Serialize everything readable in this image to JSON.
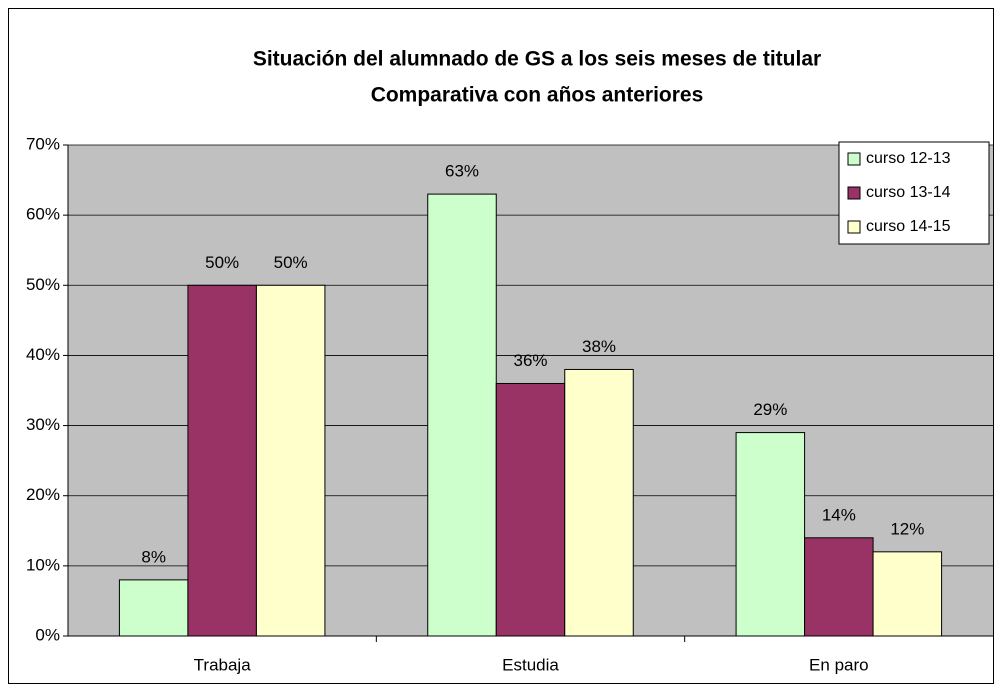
{
  "chart_data": {
    "type": "bar",
    "title": "Situación del alumnado de GS a los seis meses de titular",
    "subtitle": "Comparativa con años anteriores",
    "categories": [
      "Trabaja",
      "Estudia",
      "En paro"
    ],
    "series": [
      {
        "name": "curso 12-13",
        "color": "#ccffcc",
        "values": [
          8,
          63,
          29
        ],
        "value_labels": [
          "8%",
          "63%",
          "29%"
        ]
      },
      {
        "name": "curso 13-14",
        "color": "#993366",
        "values": [
          50,
          36,
          14
        ],
        "value_labels": [
          "50%",
          "36%",
          "14%"
        ]
      },
      {
        "name": "curso 14-15",
        "color": "#ffffcc",
        "values": [
          50,
          38,
          12
        ],
        "value_labels": [
          "50%",
          "38%",
          "12%"
        ]
      }
    ],
    "ylim": [
      0,
      70
    ],
    "yticks": [
      {
        "value": 0,
        "label": "0%"
      },
      {
        "value": 10,
        "label": "10%"
      },
      {
        "value": 20,
        "label": "20%"
      },
      {
        "value": 30,
        "label": "30%"
      },
      {
        "value": 40,
        "label": "40%"
      },
      {
        "value": 50,
        "label": "50%"
      },
      {
        "value": 60,
        "label": "60%"
      },
      {
        "value": 70,
        "label": "70%"
      }
    ],
    "grid": true,
    "legend": "top-right"
  }
}
